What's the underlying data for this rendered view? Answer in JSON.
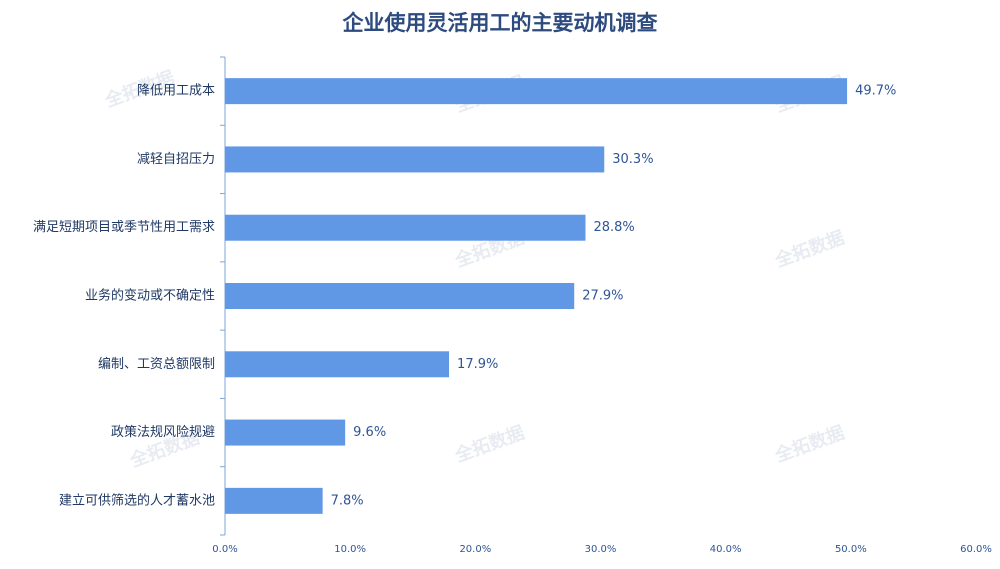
{
  "chart_data": {
    "type": "bar",
    "orientation": "horizontal",
    "title": "企业使用灵活用工的主要动机调查",
    "watermark": "全拓数据",
    "categories": [
      "降低用工成本",
      "减轻自招压力",
      "满足短期项目或季节性用工需求",
      "业务的变动或不确定性",
      "编制、工资总额限制",
      "政策法规风险规避",
      "建立可供筛选的人才蓄水池"
    ],
    "values": [
      49.7,
      30.3,
      28.8,
      27.9,
      17.9,
      9.6,
      7.8
    ],
    "value_labels": [
      "49.7%",
      "30.3%",
      "28.8%",
      "27.9%",
      "17.9%",
      "9.6%",
      "7.8%"
    ],
    "color": "#6198e6",
    "xlim": [
      0,
      60
    ],
    "xticks": [
      {
        "value": 0,
        "label": "0.0%"
      },
      {
        "value": 10,
        "label": "10.0%"
      },
      {
        "value": 20,
        "label": "20.0%"
      },
      {
        "value": 30,
        "label": "30.0%"
      },
      {
        "value": 40,
        "label": "40.0%"
      },
      {
        "value": 50,
        "label": "50.0%"
      },
      {
        "value": 60,
        "label": "60.0%"
      }
    ],
    "grid": false
  }
}
